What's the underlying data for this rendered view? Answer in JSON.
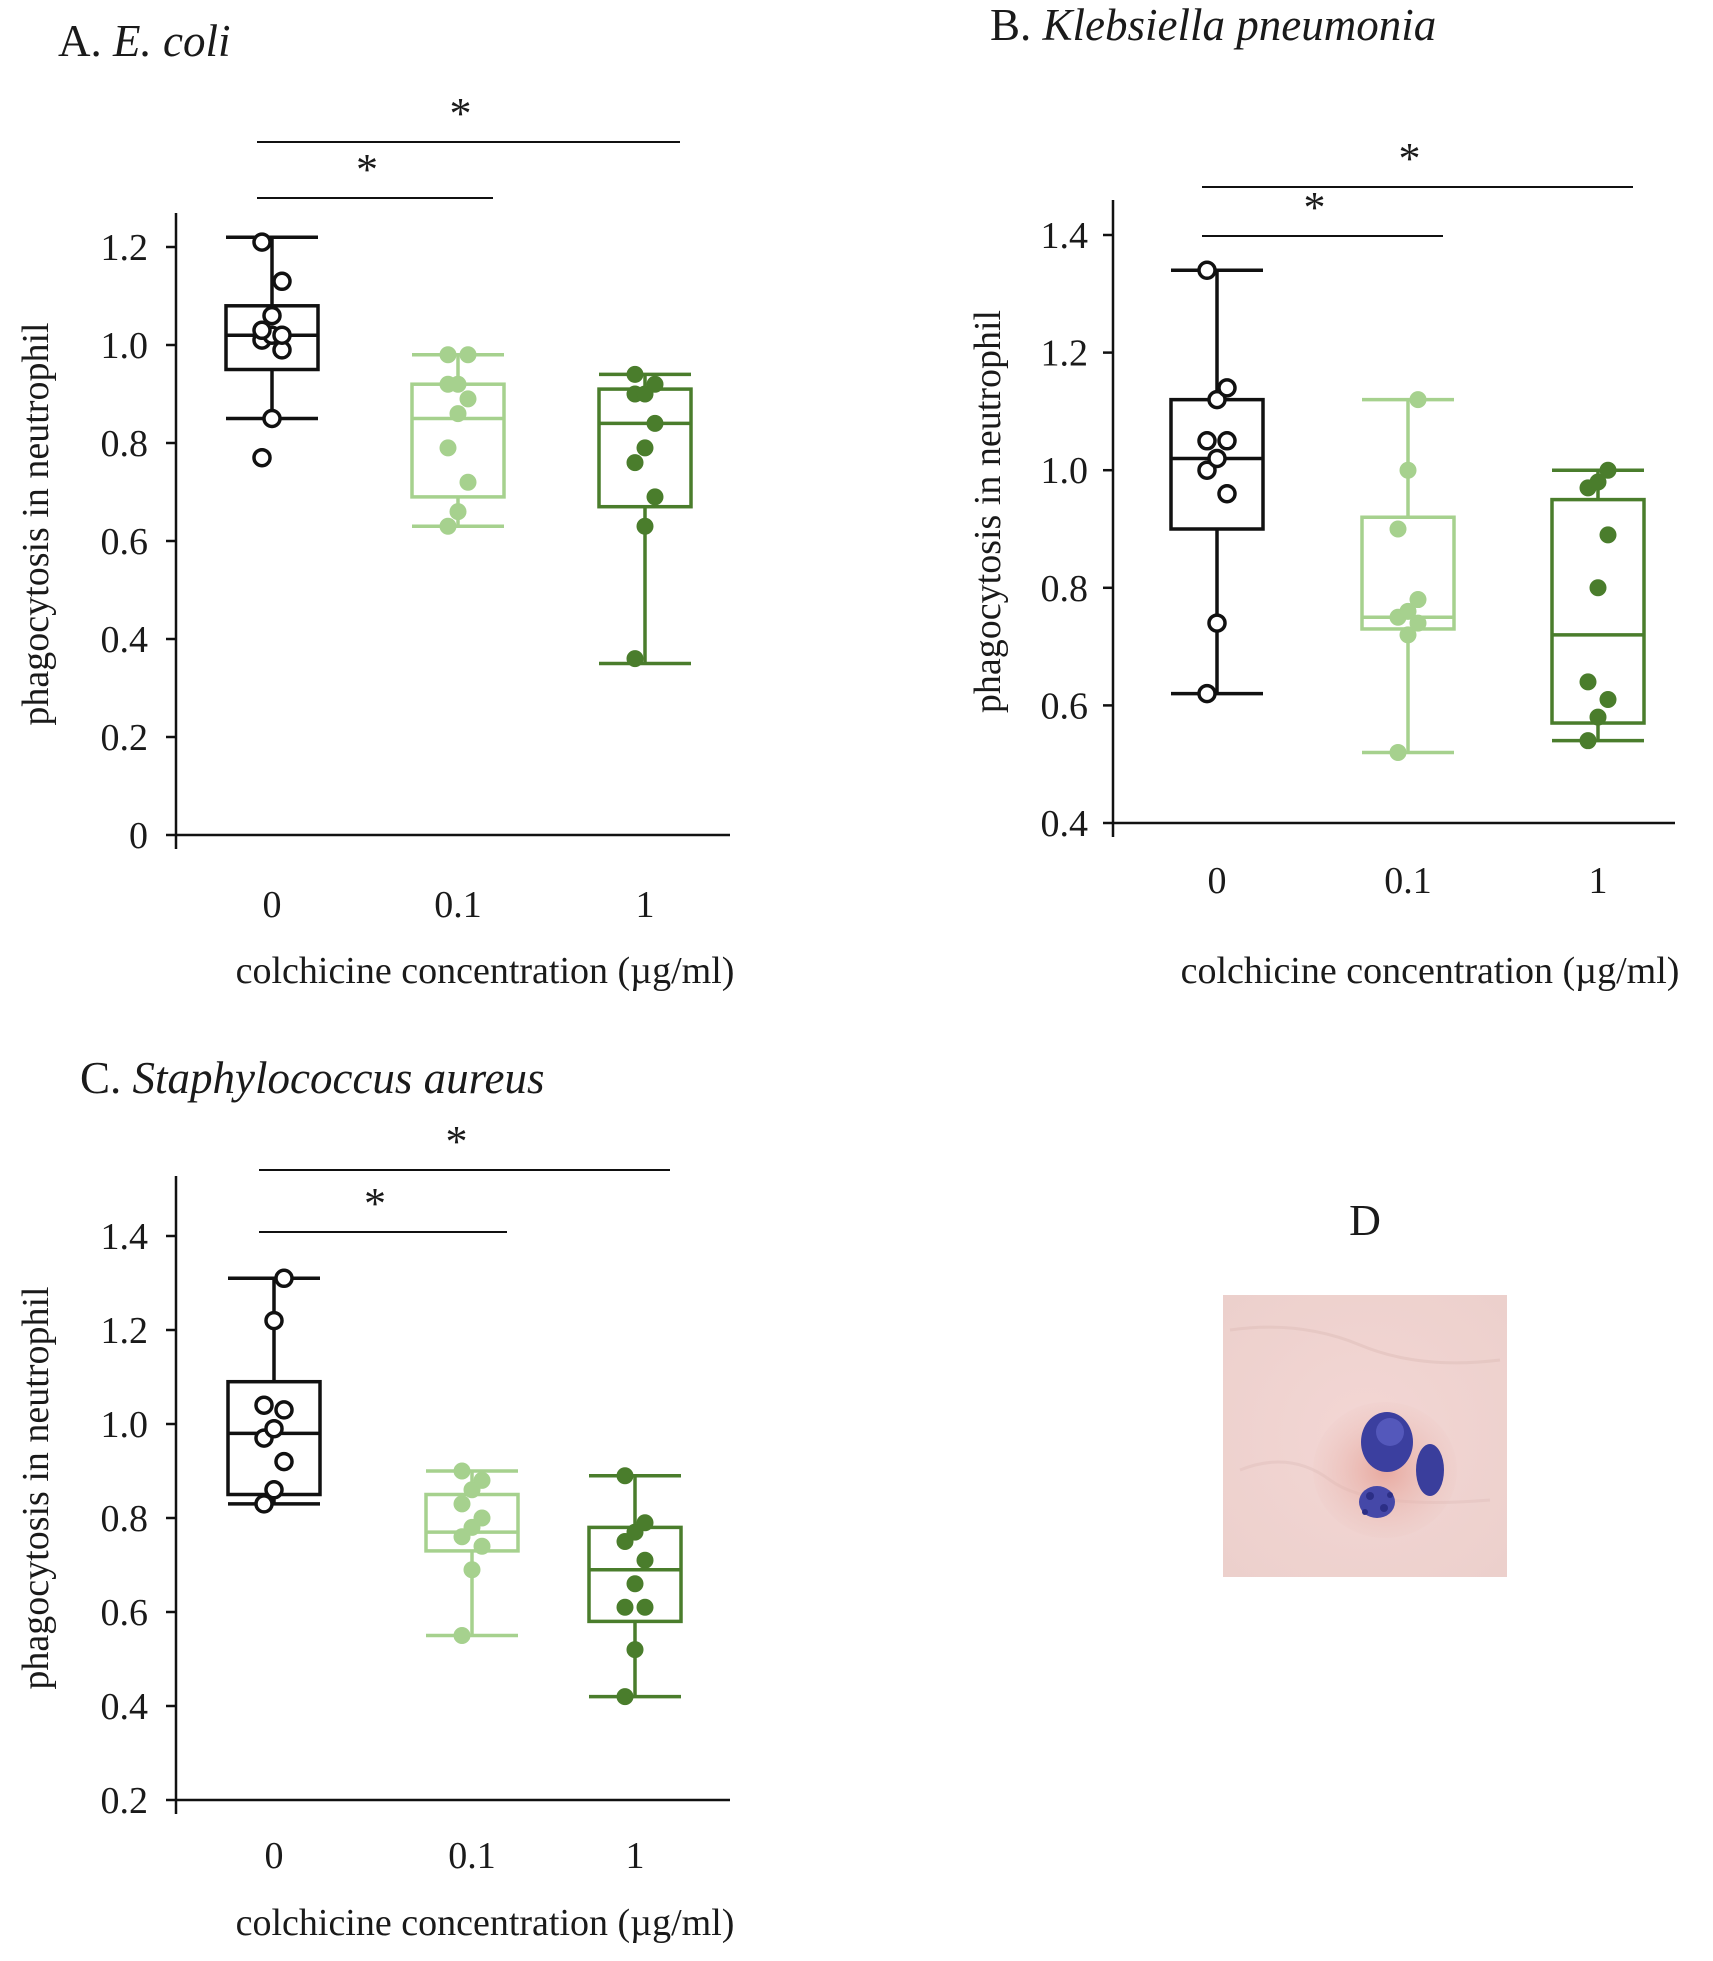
{
  "colors": {
    "control": "#111111",
    "low_dose": "#a6d18e",
    "high_dose": "#4a7d2c",
    "axis": "#111111"
  },
  "chart_data": [
    {
      "id": "A",
      "type": "box",
      "title_prefix": "A.",
      "title_organism": "E. coli",
      "xlabel": "colchicine concentration (µg/ml)",
      "ylabel": "phagocytosis in neutrophil",
      "categories": [
        "0",
        "0.1",
        "1"
      ],
      "ylim": [
        0,
        1.3
      ],
      "yticks": [
        0,
        0.2,
        0.4,
        0.6,
        0.8,
        1.0,
        1.2
      ],
      "ytick_labels": [
        "0",
        "0.2",
        "0.4",
        "0.6",
        "0.8",
        "1.0",
        "1.2"
      ],
      "boxes": [
        {
          "category": "0",
          "whisker_low": 0.85,
          "q1": 0.95,
          "median": 1.02,
          "q3": 1.08,
          "whisker_high": 1.22,
          "points": [
            0.77,
            0.85,
            0.99,
            1.01,
            1.02,
            1.02,
            1.03,
            1.06,
            1.13,
            1.21
          ]
        },
        {
          "category": "0.1",
          "whisker_low": 0.63,
          "q1": 0.69,
          "median": 0.85,
          "q3": 0.92,
          "whisker_high": 0.98,
          "points": [
            0.63,
            0.66,
            0.72,
            0.79,
            0.86,
            0.89,
            0.92,
            0.92,
            0.98,
            0.98
          ]
        },
        {
          "category": "1",
          "whisker_low": 0.35,
          "q1": 0.67,
          "median": 0.84,
          "q3": 0.91,
          "whisker_high": 0.94,
          "points": [
            0.36,
            0.63,
            0.69,
            0.76,
            0.79,
            0.84,
            0.9,
            0.9,
            0.92,
            0.94
          ]
        }
      ],
      "significance": [
        {
          "from": "0",
          "to": "0.1",
          "label": "*"
        },
        {
          "from": "0",
          "to": "1",
          "label": "*"
        }
      ]
    },
    {
      "id": "B",
      "type": "box",
      "title_prefix": "B.",
      "title_organism": "Klebsiella pneumonia",
      "xlabel": "colchicine concentration (µg/ml)",
      "ylabel": "phagocytosis in neutrophil",
      "categories": [
        "0",
        "0.1",
        "1"
      ],
      "ylim": [
        0.4,
        1.45
      ],
      "yticks": [
        0.4,
        0.6,
        0.8,
        1.0,
        1.2,
        1.4
      ],
      "ytick_labels": [
        "0.4",
        "0.6",
        "0.8",
        "1.0",
        "1.2",
        "1.4"
      ],
      "boxes": [
        {
          "category": "0",
          "whisker_low": 0.62,
          "q1": 0.9,
          "median": 1.02,
          "q3": 1.12,
          "whisker_high": 1.34,
          "points": [
            0.62,
            0.74,
            0.96,
            1.0,
            1.02,
            1.05,
            1.05,
            1.12,
            1.14,
            1.34
          ]
        },
        {
          "category": "0.1",
          "whisker_low": 0.52,
          "q1": 0.73,
          "median": 0.75,
          "q3": 0.92,
          "whisker_high": 1.12,
          "points": [
            0.52,
            0.72,
            0.74,
            0.75,
            0.76,
            0.78,
            0.9,
            1.0,
            1.12
          ]
        },
        {
          "category": "1",
          "whisker_low": 0.54,
          "q1": 0.57,
          "median": 0.72,
          "q3": 0.95,
          "whisker_high": 1.0,
          "points": [
            0.54,
            0.58,
            0.61,
            0.64,
            0.8,
            0.89,
            0.97,
            0.98,
            1.0
          ]
        }
      ],
      "significance": [
        {
          "from": "0",
          "to": "0.1",
          "label": "*"
        },
        {
          "from": "0",
          "to": "1",
          "label": "*"
        }
      ]
    },
    {
      "id": "C",
      "type": "box",
      "title_prefix": "C.",
      "title_organism": "Staphylococcus aureus",
      "xlabel": "colchicine concentration (µg/ml)",
      "ylabel": "phagocytosis in neutrophil",
      "categories": [
        "0",
        "0.1",
        "1"
      ],
      "ylim": [
        0.2,
        1.5
      ],
      "yticks": [
        0.2,
        0.4,
        0.6,
        0.8,
        1.0,
        1.2,
        1.4
      ],
      "ytick_labels": [
        "0.2",
        "0.4",
        "0.6",
        "0.8",
        "1.0",
        "1.2",
        "1.4"
      ],
      "boxes": [
        {
          "category": "0",
          "whisker_low": 0.83,
          "q1": 0.85,
          "median": 0.98,
          "q3": 1.09,
          "whisker_high": 1.31,
          "points": [
            0.83,
            0.86,
            0.92,
            0.97,
            0.99,
            1.03,
            1.04,
            1.22,
            1.31
          ]
        },
        {
          "category": "0.1",
          "whisker_low": 0.55,
          "q1": 0.73,
          "median": 0.77,
          "q3": 0.85,
          "whisker_high": 0.9,
          "points": [
            0.55,
            0.69,
            0.74,
            0.76,
            0.78,
            0.8,
            0.83,
            0.86,
            0.88,
            0.9
          ]
        },
        {
          "category": "1",
          "whisker_low": 0.42,
          "q1": 0.58,
          "median": 0.69,
          "q3": 0.78,
          "whisker_high": 0.89,
          "points": [
            0.42,
            0.52,
            0.61,
            0.61,
            0.66,
            0.71,
            0.75,
            0.77,
            0.79,
            0.89
          ]
        }
      ],
      "significance": [
        {
          "from": "0",
          "to": "0.1",
          "label": "*"
        },
        {
          "from": "0",
          "to": "1",
          "label": "*"
        }
      ]
    }
  ],
  "panel_d": {
    "label": "D",
    "image_description_icon": "neutrophil-micrograph"
  }
}
